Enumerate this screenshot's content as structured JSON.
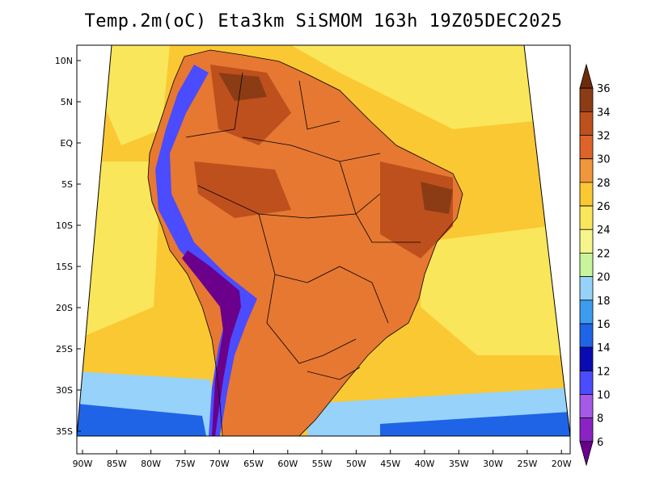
{
  "title": "Temp.2m(oC) Eta3km SiSMOM 163h 19Z05DEC2025",
  "lat_labels": [
    "10N",
    "5N",
    "EQ",
    "5S",
    "10S",
    "15S",
    "20S",
    "25S",
    "30S",
    "35S"
  ],
  "lon_labels": [
    "90W",
    "85W",
    "80W",
    "75W",
    "70W",
    "65W",
    "60W",
    "55W",
    "50W",
    "45W",
    "40W",
    "35W",
    "30W",
    "25W",
    "20W"
  ],
  "colorbar": {
    "labels": [
      "6",
      "8",
      "10",
      "12",
      "14",
      "16",
      "18",
      "20",
      "22",
      "24",
      "26",
      "28",
      "30",
      "32",
      "34",
      "36"
    ],
    "colors": [
      "#6a008c",
      "#8b23c4",
      "#a45ae6",
      "#4b4bff",
      "#0b0bb3",
      "#1f64e6",
      "#3c9cf0",
      "#96d2fa",
      "#c8f59b",
      "#f5f58c",
      "#fae65a",
      "#fac832",
      "#f0963c",
      "#dc6428",
      "#be501e",
      "#8c3c14",
      "#6e2b0a"
    ]
  },
  "fields": {
    "ocean": "#fac832",
    "ocean_cool": "#fae65a",
    "land": "#e67832",
    "land_hot": "#be501e",
    "land_hottest": "#8c3c14",
    "andes_cold": "#4b4bff",
    "andes_coldest": "#6a008c",
    "south_cool": "#96d2fa",
    "south_coolest": "#1f64e6"
  }
}
